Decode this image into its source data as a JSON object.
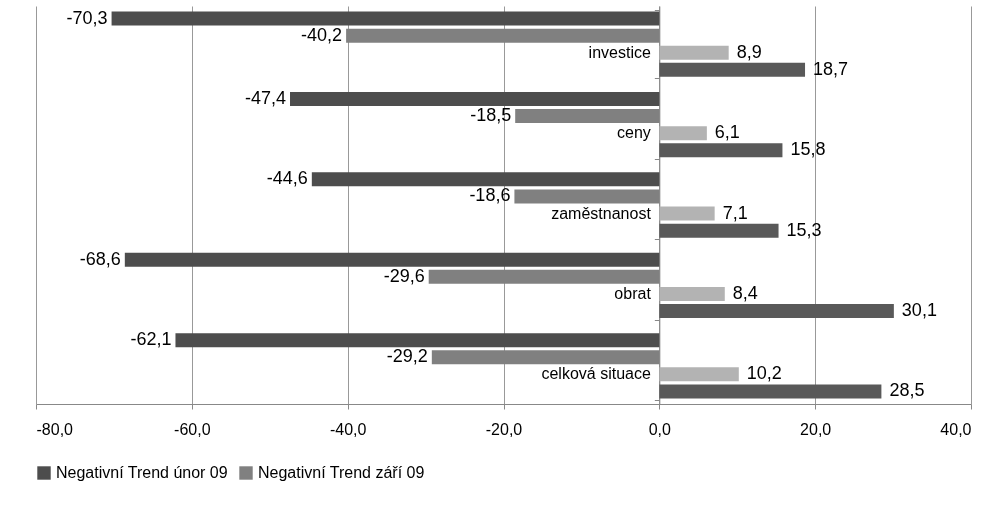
{
  "chart_data": {
    "type": "bar",
    "orientation": "horizontal",
    "categories": [
      "investice",
      "ceny",
      "zaměstnanost",
      "obrat",
      "celková situace"
    ],
    "series": [
      {
        "name": "Negativní Trend únor 09",
        "color": "#4d4d4d",
        "values": [
          -70.3,
          -47.4,
          -44.6,
          -68.6,
          -62.1
        ],
        "value_labels": [
          "-70,3",
          "-47,4",
          "-44,6",
          "-68,6",
          "-62,1"
        ]
      },
      {
        "name": "Negativní Trend září 09",
        "color": "#808080",
        "values": [
          -40.2,
          -18.5,
          -18.6,
          -29.6,
          -29.2
        ],
        "value_labels": [
          "-40,2",
          "-18,5",
          "-18,6",
          "-29,6",
          "-29,2"
        ]
      },
      {
        "color": "#b3b3b3",
        "values": [
          8.9,
          6.1,
          7.1,
          8.4,
          10.2
        ],
        "value_labels": [
          "8,9",
          "6,1",
          "7,1",
          "8,4",
          "10,2"
        ]
      },
      {
        "color": "#595959",
        "values": [
          18.7,
          15.8,
          15.3,
          30.1,
          28.5
        ],
        "value_labels": [
          "18,7",
          "15,8",
          "15,3",
          "30,1",
          "28,5"
        ]
      }
    ],
    "xlim": [
      -80,
      40
    ],
    "xticks": [
      {
        "value": -80,
        "label": "-80,0"
      },
      {
        "value": -60,
        "label": "-60,0"
      },
      {
        "value": -40,
        "label": "-40,0"
      },
      {
        "value": -20,
        "label": "-20,0"
      },
      {
        "value": 0,
        "label": "0,0"
      },
      {
        "value": 20,
        "label": "20,0"
      },
      {
        "value": 40,
        "label": "40,0"
      }
    ],
    "grid": "x",
    "legend": "bottom"
  }
}
